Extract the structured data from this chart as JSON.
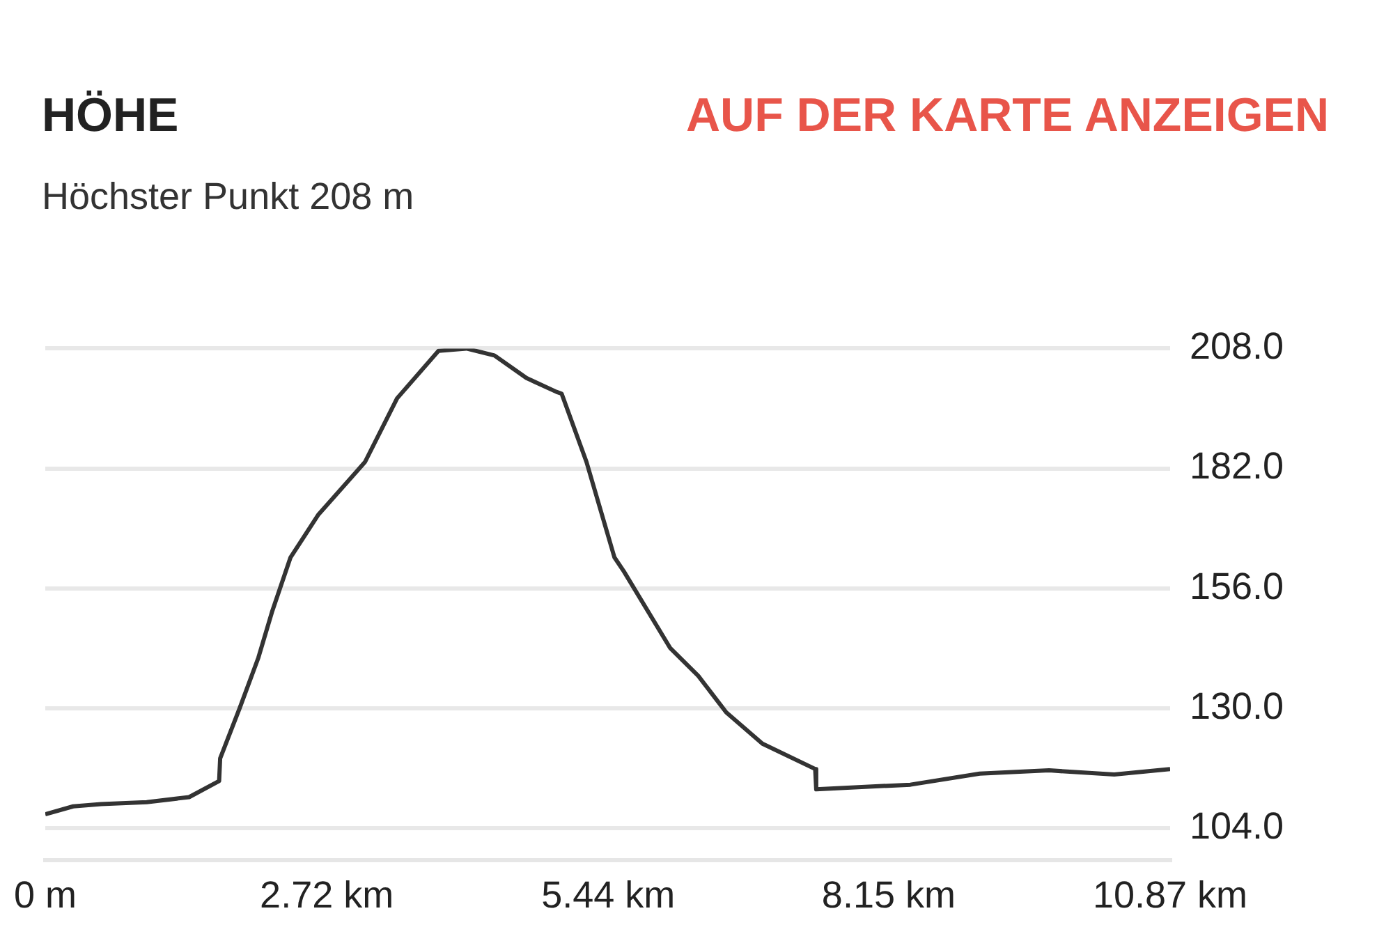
{
  "chart_data": {
    "type": "line",
    "title": "HÖHE",
    "subtitle": "Höchster Punkt 208 m",
    "annotations": [
      "AUF DER KARTE ANZEIGEN"
    ],
    "xlim": [
      0,
      10.87
    ],
    "xticks": [
      {
        "value": 0,
        "label": "0 m"
      },
      {
        "value": 2.72,
        "label": "2.72 km"
      },
      {
        "value": 5.44,
        "label": "5.44 km"
      },
      {
        "value": 8.15,
        "label": "8.15 km"
      },
      {
        "value": 10.87,
        "label": "10.87 km"
      }
    ],
    "ylim": [
      97,
      208
    ],
    "yticks": [
      {
        "value": 104,
        "label": "104.0"
      },
      {
        "value": 130,
        "label": "130.0"
      },
      {
        "value": 156,
        "label": "156.0"
      },
      {
        "value": 182,
        "label": "182.0"
      },
      {
        "value": 208,
        "label": "208.0"
      }
    ],
    "grid": "y",
    "legend": false,
    "marker": "none",
    "line_style": "solid",
    "series": [
      {
        "color": "#333333",
        "x": [
          0,
          0.27,
          0.54,
          0.98,
          1.39,
          1.68,
          1.69,
          1.88,
          2.06,
          2.19,
          2.37,
          2.64,
          3.09,
          3.4,
          3.8,
          4.07,
          4.34,
          4.65,
          4.94,
          4.99,
          5.23,
          5.5,
          5.59,
          6.04,
          6.31,
          6.58,
          6.93,
          7.44,
          7.45,
          8.36,
          9.03,
          9.7,
          10.33,
          10.87
        ],
        "values": [
          107,
          108.7,
          109.2,
          109.6,
          110.7,
          114.2,
          119.1,
          130.1,
          141,
          150.8,
          162.7,
          172,
          183.4,
          197.2,
          207.5,
          208,
          206.5,
          201.6,
          198.6,
          198.2,
          183.4,
          162.7,
          159.7,
          143,
          137,
          129.1,
          122.3,
          116.8,
          112.4,
          113.4,
          115.8,
          116.5,
          115.6,
          116.8
        ]
      }
    ]
  }
}
